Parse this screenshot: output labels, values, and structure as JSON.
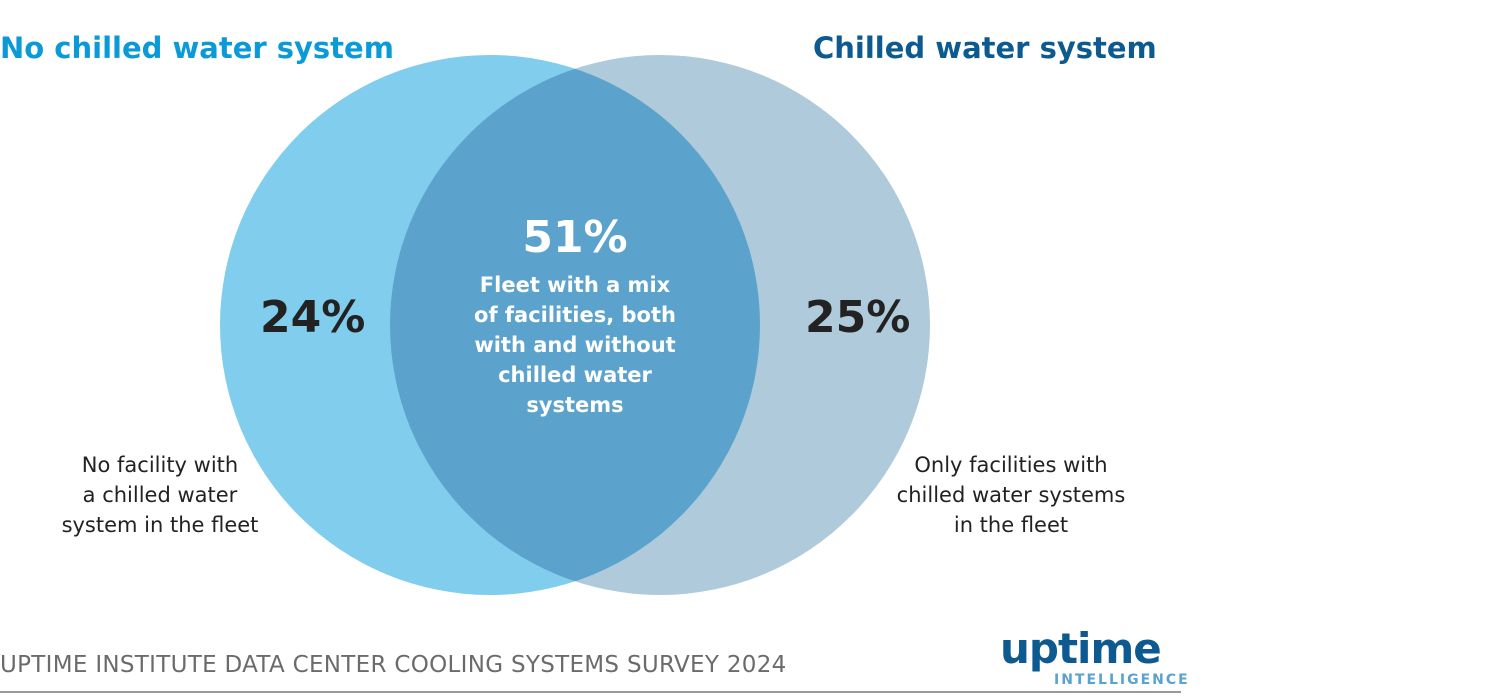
{
  "chart_data": {
    "type": "venn",
    "sets": [
      {
        "name": "No chilled water system",
        "only_value": 24,
        "only_label": "24%",
        "description": "No facility with a chilled water system in the fleet",
        "color": "#80cded"
      },
      {
        "name": "Chilled water system",
        "only_value": 25,
        "only_label": "25%",
        "description": "Only facilities with chilled water systems in the fleet",
        "color": "#aecadb"
      }
    ],
    "intersection": {
      "value": 51,
      "label": "51%",
      "description": "Fleet with a mix of facilities, both with and without chilled water systems",
      "color": "#5ba3cc"
    }
  },
  "left_note": [
    "No facility with",
    "a chilled water",
    "system in the fleet"
  ],
  "right_note": [
    "Only facilities with",
    "chilled water systems",
    "in the fleet"
  ],
  "center_note": [
    "Fleet with a mix",
    "of facilities, both",
    "with and without",
    "chilled water",
    "systems"
  ],
  "footer": "UPTIME INSTITUTE DATA CENTER COOLING SYSTEMS SURVEY 2024",
  "logo": {
    "main": "uptime",
    "sub": "INTELLIGENCE"
  }
}
